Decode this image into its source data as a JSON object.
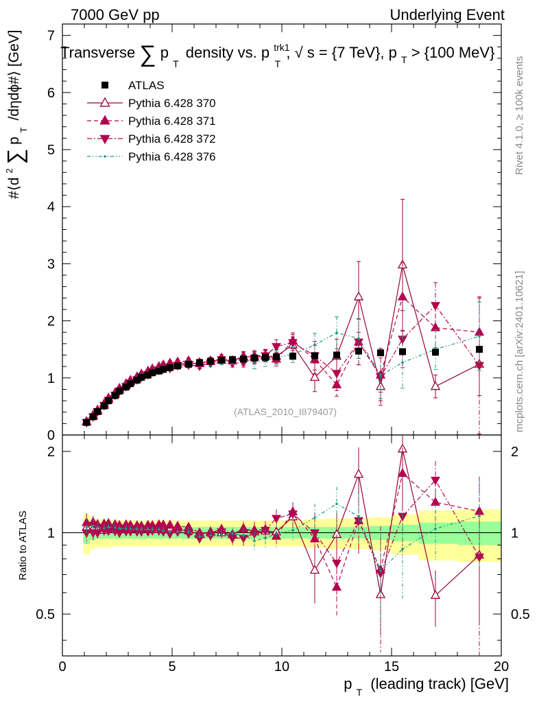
{
  "header": {
    "left": "7000 GeV pp",
    "right": "Underlying Event"
  },
  "side": {
    "rivet": "Rivet 4.1.0, ≥ 100k events",
    "mcplots": "mcplots.cern.ch [arXiv:2401.10621]"
  },
  "chart_data": {
    "type": "scatter",
    "title": "Transverse ∑ pT density vs. pT^trk1, √s = {7 TeV}, pT > {100 MeV}",
    "title_parts": {
      "lead": "Transverse",
      "sigma": "∑",
      "p": "p",
      "t": "T",
      "mid": "density vs. p",
      "trk": "trk1",
      "t2": "T",
      "sqrt_lead": ", √",
      "s": "s",
      "eq": " = {7 TeV}, p",
      "t3": "T",
      "tail": " > {100 MeV}"
    },
    "ylabel_main": "#⟨d² ∑ pT /dηdϕ#⟩ [GeV]",
    "ylabel_main_parts": {
      "a": "#⟨d",
      "sup": "2",
      "sigma": "∑",
      "p": "p",
      "t": "T",
      "b": "/dηdϕ#⟩ [GeV]"
    },
    "ylabel_ratio": "Ratio to ATLAS",
    "xlabel": "pT (leading track) [GeV]",
    "xlabel_parts": {
      "p": "p",
      "t": "T",
      "rest": "(leading track) [GeV]"
    },
    "analysis_tag": "(ATLAS_2010_I879407)",
    "xlim": [
      0,
      20
    ],
    "ylim_main": [
      0,
      7.2
    ],
    "ylim_ratio": [
      0.35,
      2.3
    ],
    "x_ticks": [
      {
        "value": 0,
        "label": "0"
      },
      {
        "value": 5,
        "label": "5"
      },
      {
        "value": 10,
        "label": "10"
      },
      {
        "value": 15,
        "label": "15"
      },
      {
        "value": 20,
        "label": "20"
      }
    ],
    "y_ticks_main": [
      {
        "value": 0,
        "label": "0"
      },
      {
        "value": 1,
        "label": "1"
      },
      {
        "value": 2,
        "label": "2"
      },
      {
        "value": 3,
        "label": "3"
      },
      {
        "value": 4,
        "label": "4"
      },
      {
        "value": 5,
        "label": "5"
      },
      {
        "value": 6,
        "label": "6"
      },
      {
        "value": 7,
        "label": "7"
      }
    ],
    "y_ticks_ratio": [
      {
        "value": 0.5,
        "label": "0.5"
      },
      {
        "value": 1,
        "label": "1"
      },
      {
        "value": 2,
        "label": "2"
      }
    ],
    "x": [
      1.1,
      1.4,
      1.6,
      1.9,
      2.1,
      2.4,
      2.6,
      2.9,
      3.1,
      3.4,
      3.6,
      3.9,
      4.1,
      4.4,
      4.6,
      4.9,
      5.25,
      5.75,
      6.25,
      6.75,
      7.25,
      7.75,
      8.25,
      8.75,
      9.25,
      9.75,
      10.5,
      11.5,
      12.5,
      13.5,
      14.5,
      15.5,
      17.0,
      19.0
    ],
    "series": [
      {
        "name": "ATLAS",
        "role": "reference",
        "style": "square",
        "color": "#000000",
        "values": [
          0.22,
          0.32,
          0.41,
          0.51,
          0.6,
          0.69,
          0.77,
          0.84,
          0.9,
          0.96,
          1.01,
          1.05,
          1.09,
          1.12,
          1.15,
          1.18,
          1.21,
          1.24,
          1.27,
          1.29,
          1.31,
          1.32,
          1.33,
          1.35,
          1.36,
          1.37,
          1.38,
          1.39,
          1.4,
          1.47,
          1.44,
          1.46,
          1.45,
          1.5
        ],
        "band_inner": [
          0.09,
          0.06,
          0.05,
          0.05,
          0.05,
          0.05,
          0.05,
          0.05,
          0.05,
          0.05,
          0.05,
          0.05,
          0.05,
          0.05,
          0.05,
          0.05,
          0.05,
          0.05,
          0.05,
          0.05,
          0.05,
          0.05,
          0.05,
          0.05,
          0.05,
          0.05,
          0.05,
          0.05,
          0.05,
          0.05,
          0.06,
          0.07,
          0.09,
          0.1
        ],
        "band_outer": [
          0.08,
          0.07,
          0.07,
          0.07,
          0.07,
          0.06,
          0.06,
          0.06,
          0.06,
          0.06,
          0.06,
          0.06,
          0.06,
          0.06,
          0.06,
          0.06,
          0.06,
          0.06,
          0.06,
          0.06,
          0.06,
          0.06,
          0.06,
          0.06,
          0.06,
          0.06,
          0.06,
          0.07,
          0.08,
          0.08,
          0.08,
          0.1,
          0.12,
          0.12
        ]
      },
      {
        "name": "Pythia 6.428 370",
        "style": "open-triangle-up",
        "line": "solid",
        "color": "#990033",
        "values": [
          0.23,
          0.33,
          0.42,
          0.52,
          0.62,
          0.71,
          0.79,
          0.87,
          0.93,
          0.99,
          1.04,
          1.09,
          1.12,
          1.15,
          1.18,
          1.21,
          1.24,
          1.26,
          1.25,
          1.3,
          1.31,
          1.3,
          1.38,
          1.36,
          1.38,
          1.38,
          1.58,
          1.01,
          1.38,
          2.42,
          0.85,
          2.98,
          0.85,
          1.24
        ],
        "err": [
          0.02,
          0.02,
          0.02,
          0.02,
          0.02,
          0.02,
          0.02,
          0.03,
          0.03,
          0.03,
          0.03,
          0.03,
          0.03,
          0.03,
          0.04,
          0.04,
          0.04,
          0.05,
          0.05,
          0.06,
          0.06,
          0.07,
          0.08,
          0.1,
          0.1,
          0.12,
          0.14,
          0.25,
          0.3,
          0.62,
          0.25,
          1.15,
          0.2,
          0.55
        ]
      },
      {
        "name": "Pythia 6.428 371",
        "style": "triangle-up",
        "line": "dashed",
        "color": "#b3004f",
        "values": [
          0.24,
          0.35,
          0.44,
          0.55,
          0.65,
          0.74,
          0.82,
          0.9,
          0.96,
          1.02,
          1.07,
          1.12,
          1.16,
          1.2,
          1.23,
          1.26,
          1.28,
          1.3,
          1.27,
          1.29,
          1.35,
          1.3,
          1.37,
          1.38,
          1.4,
          1.33,
          1.65,
          1.32,
          0.88,
          1.63,
          1.05,
          2.42,
          1.88,
          1.8
        ],
        "err": [
          0.02,
          0.02,
          0.02,
          0.02,
          0.02,
          0.02,
          0.02,
          0.03,
          0.03,
          0.03,
          0.03,
          0.03,
          0.03,
          0.03,
          0.04,
          0.04,
          0.04,
          0.05,
          0.05,
          0.06,
          0.06,
          0.07,
          0.08,
          0.1,
          0.1,
          0.12,
          0.14,
          0.25,
          0.2,
          0.4,
          0.3,
          0.6,
          0.35,
          0.6
        ]
      },
      {
        "name": "Pythia 6.428 372",
        "style": "triangle-down",
        "line": "dash-dot",
        "color": "#b3004f",
        "values": [
          0.22,
          0.32,
          0.41,
          0.52,
          0.61,
          0.7,
          0.77,
          0.85,
          0.91,
          0.97,
          1.02,
          1.06,
          1.11,
          1.14,
          1.16,
          1.17,
          1.22,
          1.23,
          1.21,
          1.26,
          1.32,
          1.26,
          1.27,
          1.34,
          1.39,
          1.55,
          1.62,
          1.39,
          1.08,
          1.63,
          1.02,
          1.68,
          2.27,
          1.22
        ],
        "err": [
          0.02,
          0.02,
          0.02,
          0.02,
          0.02,
          0.02,
          0.02,
          0.03,
          0.03,
          0.03,
          0.03,
          0.03,
          0.03,
          0.03,
          0.04,
          0.04,
          0.04,
          0.05,
          0.05,
          0.06,
          0.06,
          0.07,
          0.08,
          0.1,
          0.1,
          0.12,
          0.14,
          0.25,
          0.3,
          0.4,
          0.5,
          0.5,
          0.4,
          1.2
        ]
      },
      {
        "name": "Pythia 6.428 376",
        "style": "small-dot",
        "line": "dash-dot-dot",
        "color": "#1a9980",
        "values": [
          0.23,
          0.34,
          0.43,
          0.53,
          0.63,
          0.72,
          0.8,
          0.87,
          0.93,
          0.99,
          1.04,
          1.08,
          1.12,
          1.15,
          1.17,
          1.19,
          1.22,
          1.25,
          1.23,
          1.26,
          1.29,
          1.31,
          1.3,
          1.26,
          1.3,
          1.36,
          1.41,
          1.58,
          1.79,
          1.69,
          1.04,
          1.27,
          1.5,
          1.73
        ],
        "err": [
          0.02,
          0.02,
          0.02,
          0.02,
          0.02,
          0.02,
          0.02,
          0.03,
          0.03,
          0.03,
          0.03,
          0.03,
          0.03,
          0.03,
          0.04,
          0.04,
          0.04,
          0.05,
          0.05,
          0.06,
          0.06,
          0.07,
          0.08,
          0.1,
          0.1,
          0.12,
          0.14,
          0.2,
          0.28,
          0.35,
          0.4,
          0.45,
          0.35,
          0.6
        ]
      }
    ]
  }
}
